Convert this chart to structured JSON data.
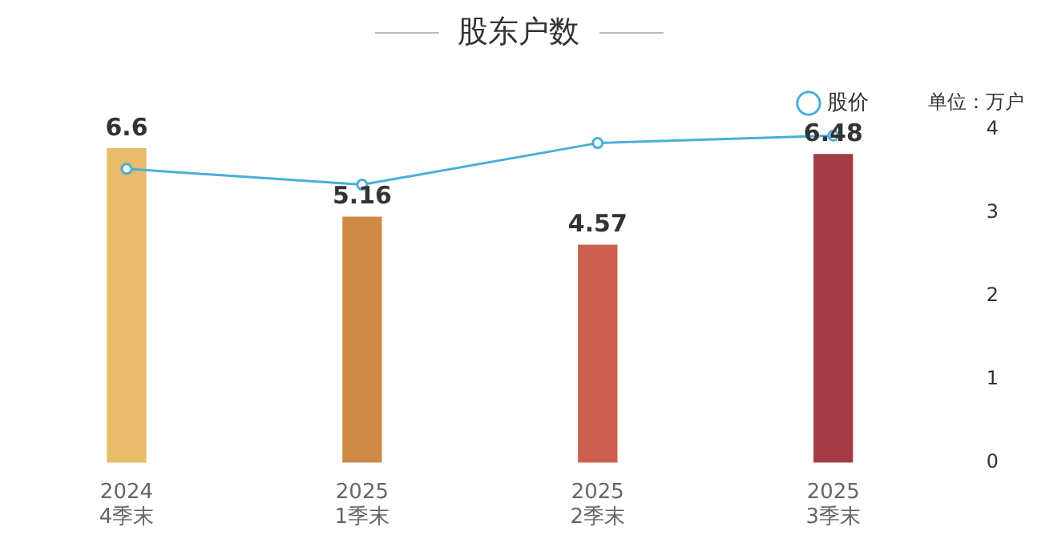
{
  "chart_data": {
    "type": "bar",
    "title": "股东户数",
    "categories": [
      "2024\n4季末",
      "2025\n1季末",
      "2025\n2季末",
      "2025\n3季末"
    ],
    "series": [
      {
        "colors": [
          "#e8bb6a",
          "#d08a48",
          "#cb5f50",
          "#a33a48"
        ],
        "values": [
          6.6,
          5.16,
          4.57,
          6.48
        ],
        "value_labels": [
          "6.6",
          "5.16",
          "4.57",
          "6.48"
        ]
      },
      {
        "type": "line",
        "name": "股价",
        "color": "#4aaed9",
        "axis": "y2",
        "values": [
          3.53,
          3.34,
          3.84,
          3.93
        ]
      }
    ],
    "y2lim": [
      0,
      4
    ],
    "y2ticks": [
      0,
      1,
      2,
      3,
      4
    ],
    "grid": false,
    "legend": "top right",
    "marker": "circle",
    "annotations": [
      "单位：万户"
    ]
  }
}
